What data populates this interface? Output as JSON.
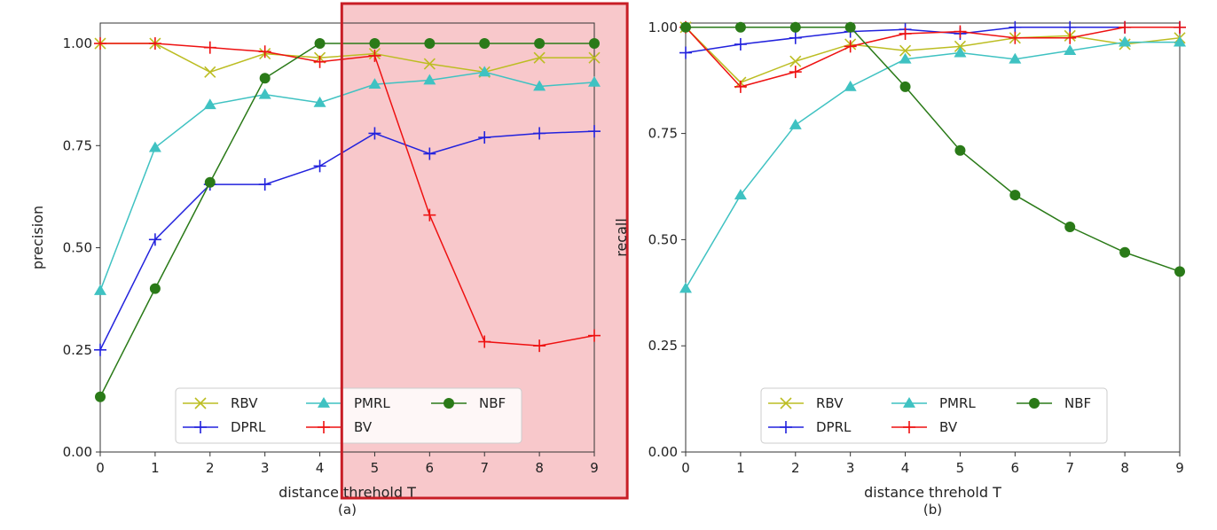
{
  "chart_data": [
    {
      "type": "line",
      "caption": "(a)",
      "xlabel": "distance threhold T",
      "ylabel": "precision",
      "xlim": [
        0,
        9
      ],
      "ylim": [
        0,
        1.05
      ],
      "x": [
        0,
        1,
        2,
        3,
        4,
        5,
        6,
        7,
        8,
        9
      ],
      "yticks": [
        "0.00",
        "0.25",
        "0.50",
        "0.75",
        "1.00"
      ],
      "xticks": [
        "0",
        "1",
        "2",
        "3",
        "4",
        "5",
        "6",
        "7",
        "8",
        "9"
      ],
      "grid": false,
      "legend_position": "bottom-center",
      "highlight": {
        "x_from": 4.4,
        "x_to": 9.6,
        "fill": "#f4a7ab",
        "stroke": "#c81e26"
      },
      "series": [
        {
          "name": "RBV",
          "color": "#bcbd22",
          "marker": "x",
          "values": [
            1.0,
            1.0,
            0.93,
            0.975,
            0.965,
            0.975,
            0.95,
            0.93,
            0.965,
            0.965
          ]
        },
        {
          "name": "DPRL",
          "color": "#2222dd",
          "marker": "plus",
          "values": [
            0.25,
            0.52,
            0.655,
            0.655,
            0.7,
            0.78,
            0.73,
            0.77,
            0.78,
            0.785
          ]
        },
        {
          "name": "PMRL",
          "color": "#3fc2c2",
          "marker": "triangle",
          "values": [
            0.395,
            0.745,
            0.85,
            0.875,
            0.855,
            0.9,
            0.91,
            0.93,
            0.895,
            0.905
          ]
        },
        {
          "name": "BV",
          "color": "#ee1111",
          "marker": "plus",
          "values": [
            1.0,
            1.0,
            0.99,
            0.98,
            0.955,
            0.97,
            0.58,
            0.27,
            0.26,
            0.285
          ]
        },
        {
          "name": "NBF",
          "color": "#2a7a18",
          "marker": "circle",
          "values": [
            0.135,
            0.4,
            0.66,
            0.915,
            1.0,
            1.0,
            1.0,
            1.0,
            1.0,
            1.0
          ]
        }
      ]
    },
    {
      "type": "line",
      "caption": "(b)",
      "xlabel": "distance threhold T",
      "ylabel": "recall",
      "xlim": [
        0,
        9
      ],
      "ylim": [
        0,
        1.01
      ],
      "x": [
        0,
        1,
        2,
        3,
        4,
        5,
        6,
        7,
        8,
        9
      ],
      "yticks": [
        "0.00",
        "0.25",
        "0.50",
        "0.75",
        "1.00"
      ],
      "xticks": [
        "0",
        "1",
        "2",
        "3",
        "4",
        "5",
        "6",
        "7",
        "8",
        "9"
      ],
      "grid": false,
      "legend_position": "bottom-center",
      "series": [
        {
          "name": "RBV",
          "color": "#bcbd22",
          "marker": "x",
          "values": [
            1.0,
            0.87,
            0.92,
            0.96,
            0.945,
            0.955,
            0.975,
            0.98,
            0.96,
            0.975
          ]
        },
        {
          "name": "DPRL",
          "color": "#2222dd",
          "marker": "plus",
          "values": [
            0.94,
            0.96,
            0.975,
            0.99,
            0.995,
            0.985,
            1.0,
            1.0,
            1.0,
            1.0
          ]
        },
        {
          "name": "PMRL",
          "color": "#3fc2c2",
          "marker": "triangle",
          "values": [
            0.385,
            0.605,
            0.77,
            0.86,
            0.925,
            0.94,
            0.925,
            0.945,
            0.965,
            0.965
          ]
        },
        {
          "name": "BV",
          "color": "#ee1111",
          "marker": "plus",
          "values": [
            1.0,
            0.86,
            0.895,
            0.955,
            0.985,
            0.99,
            0.975,
            0.975,
            1.0,
            1.0
          ]
        },
        {
          "name": "NBF",
          "color": "#2a7a18",
          "marker": "circle",
          "values": [
            1.0,
            1.0,
            1.0,
            1.0,
            0.86,
            0.71,
            0.605,
            0.53,
            0.47,
            0.425
          ]
        }
      ]
    }
  ]
}
